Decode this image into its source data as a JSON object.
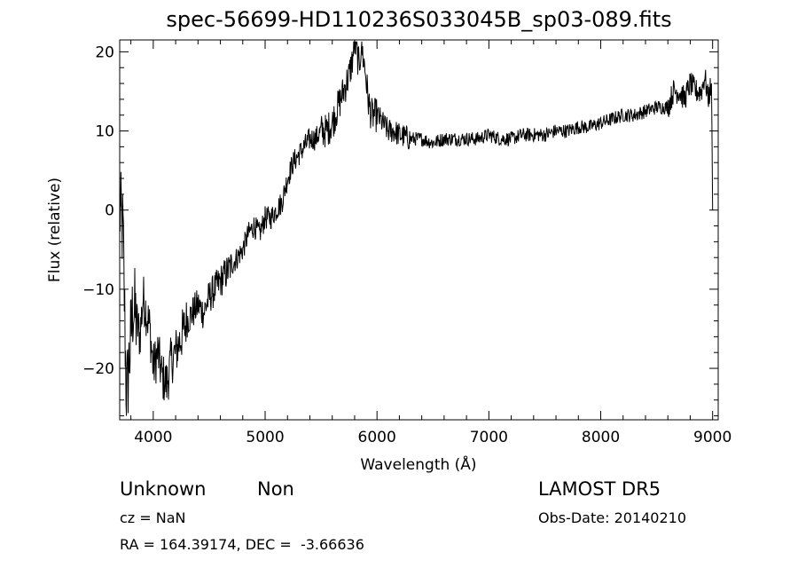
{
  "chart_data": {
    "type": "line",
    "title": "spec-56699-HD110236S033045B_sp03-089.fits",
    "xlabel": "Wavelength (Å)",
    "ylabel": "Flux (relative)",
    "xlim": [
      3700,
      9050
    ],
    "ylim": [
      -26.5,
      21.5
    ],
    "xticks": [
      4000,
      5000,
      6000,
      7000,
      8000,
      9000
    ],
    "yticks": [
      -20,
      -10,
      0,
      10,
      20
    ],
    "grid": false,
    "series": [
      {
        "x": [
          3700,
          3730,
          3760,
          3790,
          3820,
          3850,
          3880,
          3910,
          3940,
          3970,
          4000,
          4040,
          4080,
          4120,
          4160,
          4200,
          4250,
          4300,
          4350,
          4400,
          4450,
          4500,
          4550,
          4600,
          4650,
          4700,
          4750,
          4800,
          4850,
          4900,
          4950,
          5000,
          5050,
          5100,
          5150,
          5200,
          5250,
          5300,
          5350,
          5400,
          5450,
          5500,
          5550,
          5600,
          5650,
          5700,
          5750,
          5780,
          5800,
          5820,
          5840,
          5860,
          5880,
          5900,
          5920,
          5950,
          6000,
          6050,
          6100,
          6150,
          6200,
          6300,
          6400,
          6500,
          6600,
          6700,
          6800,
          6900,
          7000,
          7100,
          7200,
          7300,
          7400,
          7500,
          7600,
          7700,
          7800,
          7900,
          8000,
          8100,
          8200,
          8300,
          8400,
          8500,
          8600,
          8650,
          8700,
          8750,
          8800,
          8850,
          8900,
          8930,
          8960,
          8990,
          9000
        ],
        "y": [
          0,
          -3,
          -24,
          -18,
          -12,
          -14,
          -16,
          -11,
          -13,
          -15,
          -20,
          -18,
          -21,
          -22,
          -19,
          -18,
          -16,
          -14,
          -13,
          -12,
          -13,
          -11,
          -10,
          -9,
          -8,
          -7,
          -6,
          -5,
          -3,
          -2,
          -3,
          -1,
          -1,
          0,
          1,
          4,
          6,
          7,
          8,
          9,
          9,
          10,
          10,
          11,
          13,
          15,
          17,
          19,
          21,
          20,
          18,
          21,
          19,
          17,
          14,
          12,
          12,
          11,
          10,
          10,
          9.5,
          9,
          9,
          8.5,
          9,
          9,
          9,
          9,
          9.5,
          9,
          9,
          9.5,
          9.5,
          9.5,
          10,
          10,
          10.5,
          10.5,
          11,
          11.5,
          12,
          12,
          12.5,
          13,
          13,
          15,
          15,
          14,
          16,
          15,
          15,
          17,
          14,
          16,
          0
        ],
        "color": "#000000"
      }
    ]
  },
  "annotations": {
    "class_label": "Unknown",
    "subclass_label": "Non",
    "survey": "LAMOST DR5",
    "redshift": "cz = NaN",
    "obs_date": "Obs-Date: 20140210",
    "coords": "RA = 164.39174, DEC =  -3.66636"
  }
}
